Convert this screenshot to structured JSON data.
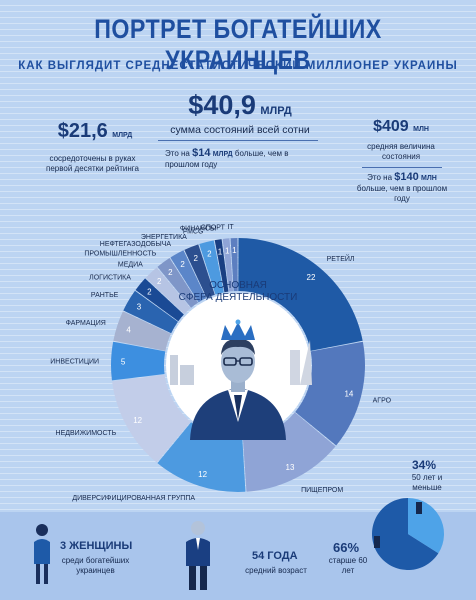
{
  "header": {
    "title": "ПОРТРЕТ БОГАТЕЙШИХ УКРАИНЦЕВ",
    "subtitle": "КАК ВЫГЛЯДИТ СРЕДНЕСТАТИСТИЧЕСКИЙ МИЛЛИОНЕР УКРАИНЫ"
  },
  "stats": {
    "left": {
      "value": "$21,6",
      "unit": "МЛРД",
      "text": "сосредоточены в руках первой десятки рейтинга"
    },
    "center": {
      "value": "$40,9",
      "unit": "МЛРД",
      "text": "сумма состояний всей сотни",
      "note_pre": "Это на",
      "note_hl": "$14",
      "note_unit": "МЛРД",
      "note_post": "больше, чем в прошлом году"
    },
    "right": {
      "value": "$409",
      "unit": "МЛН",
      "text": "средняя величина состояния",
      "note_pre": "Это на",
      "note_hl": "$140",
      "note_unit": "МЛН",
      "note_post": "больше, чем в прошлом году"
    }
  },
  "chart_data": {
    "type": "pie",
    "title": "ОСНОВНАЯ СФЕРА ДЕЯТЕЛЬНОСТИ",
    "slices": [
      {
        "label": "РЕТЕЙЛ",
        "value": 22,
        "color": "#1f5aa6"
      },
      {
        "label": "АГРО",
        "value": 14,
        "color": "#5378bd"
      },
      {
        "label": "ПИЩЕПРОМ",
        "value": 13,
        "color": "#8fa4d6"
      },
      {
        "label": "ДИВЕРСИФИЦИРОВАННАЯ ГРУППА",
        "value": 12,
        "color": "#4d9ae0"
      },
      {
        "label": "НЕДВИЖИМОСТЬ",
        "value": 12,
        "color": "#c2cde9"
      },
      {
        "label": "ИНВЕСТИЦИИ",
        "value": 5,
        "color": "#3d8fe0"
      },
      {
        "label": "ФАРМАЦИЯ",
        "value": 4,
        "color": "#a6b2d0"
      },
      {
        "label": "РАНТЬЕ",
        "value": 3,
        "color": "#2a64b0"
      },
      {
        "label": "ЛОГИСТИКА",
        "value": 2,
        "color": "#1a4a95"
      },
      {
        "label": "МЕДИА",
        "value": 2,
        "color": "#b6c4e4"
      },
      {
        "label": "ПРОМЫШЛЕННОСТЬ",
        "value": 2,
        "color": "#7f96c8"
      },
      {
        "label": "НЕФТЕГАЗОДОБЫЧА",
        "value": 2,
        "color": "#5b86c9"
      },
      {
        "label": "ЭНЕРГЕТИКА",
        "value": 2,
        "color": "#2c4f8f"
      },
      {
        "label": "FMCG",
        "value": 2,
        "color": "#4d9ae0"
      },
      {
        "label": "ФИНАНСЫ",
        "value": 1,
        "color": "#1a3f82"
      },
      {
        "label": "СПОРТ",
        "value": 1,
        "color": "#8fa4d6"
      },
      {
        "label": "IT",
        "value": 1,
        "color": "#5d7fc0"
      }
    ]
  },
  "bottom": {
    "women": {
      "value": "3 ЖЕНЩИНЫ",
      "text": "среди богатейших украинцев"
    },
    "age": {
      "value": "54 ГОДА",
      "text": "средний возраст"
    },
    "old": {
      "value": "66%",
      "text": "старше 60 лет"
    },
    "young": {
      "value": "34%",
      "text": "50 лет и меньше"
    },
    "age_pie": [
      {
        "label": "старше 60 лет",
        "value": 66,
        "color": "#1e5aa8"
      },
      {
        "label": "50 лет и меньше",
        "value": 34,
        "color": "#4ea3e8"
      }
    ]
  }
}
